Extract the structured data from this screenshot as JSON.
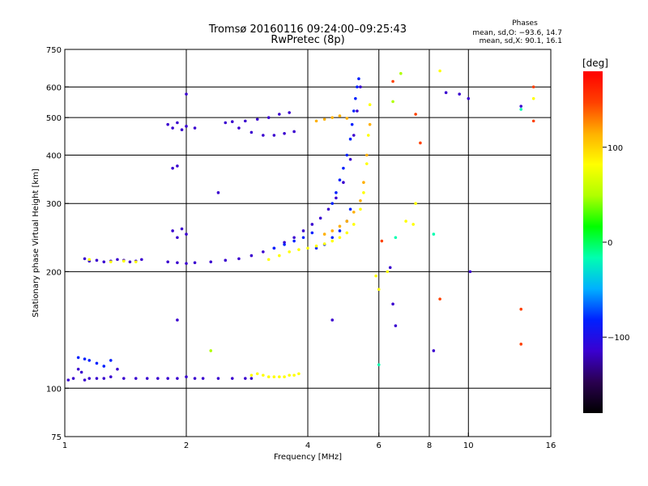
{
  "title": {
    "line1": "Tromsø 20160116 09:24:00–09:25:43",
    "line2": "RwPretec (8p)"
  },
  "phases_box": {
    "heading": "Phases",
    "line_o": "mean, sd,O: −93.6, 14.7",
    "line_x": "mean, sd,X:  90.1, 16.1"
  },
  "chart_data": {
    "type": "scatter",
    "xlabel": "Frequency [MHz]",
    "ylabel": "Stationary phase Virtual Height [km]",
    "xscale": "log",
    "yscale": "log",
    "xlim": [
      1,
      16
    ],
    "ylim": [
      75,
      750
    ],
    "x_ticks": [
      1,
      2,
      4,
      6,
      8,
      10,
      16
    ],
    "y_ticks": [
      75,
      100,
      200,
      300,
      400,
      500,
      600,
      750
    ],
    "x_grid": [
      2,
      4,
      6,
      8,
      10
    ],
    "y_grid": [
      100,
      200,
      300,
      400,
      500,
      600
    ],
    "grid": true,
    "colorbar": {
      "label": "[deg]",
      "range": [
        -180,
        180
      ],
      "ticks": [
        -100,
        0,
        100
      ],
      "tick_labels": [
        "−100",
        "0",
        "100"
      ],
      "colors": [
        "#000000",
        "#2a0050",
        "#3a00d0",
        "#0020ff",
        "#00b0ff",
        "#00ffb0",
        "#00ff00",
        "#b0ff00",
        "#ffff00",
        "#ffb000",
        "#ff4000",
        "#ff0000"
      ]
    },
    "series": [
      {
        "color_value": -100,
        "x": [
          1.02,
          1.05,
          1.08,
          1.1,
          1.12,
          1.15,
          1.2,
          1.25,
          1.3,
          1.35,
          1.4,
          1.5,
          1.6,
          1.7,
          1.8,
          1.9,
          2.0,
          2.1,
          2.2,
          2.4,
          2.6,
          2.8,
          2.9
        ],
        "y": [
          105,
          106,
          112,
          110,
          105,
          106,
          106,
          106,
          107,
          112,
          106,
          106,
          106,
          106,
          106,
          106,
          107,
          106,
          106,
          106,
          106,
          106,
          106
        ]
      },
      {
        "color_value": -90,
        "x": [
          1.08,
          1.12,
          1.15,
          1.2,
          1.25,
          1.3
        ],
        "y": [
          120,
          119,
          118,
          116,
          114,
          118
        ]
      },
      {
        "color_value": -100,
        "x": [
          1.12,
          1.15,
          1.2,
          1.25,
          1.3,
          1.35,
          1.4,
          1.45,
          1.5,
          1.55
        ],
        "y": [
          216,
          213,
          214,
          212,
          213,
          215,
          214,
          212,
          213,
          215
        ]
      },
      {
        "color_value": -100,
        "x": [
          1.8,
          1.9,
          2.0,
          2.1,
          2.3,
          2.5,
          2.7,
          2.9,
          3.1,
          3.3,
          3.5,
          3.7,
          3.9,
          4.1,
          4.3,
          4.5,
          4.7,
          4.9,
          5.1,
          5.2,
          5.3,
          5.4
        ],
        "y": [
          212,
          211,
          210,
          211,
          212,
          214,
          216,
          220,
          225,
          230,
          238,
          245,
          255,
          265,
          275,
          290,
          310,
          340,
          390,
          450,
          520,
          600
        ]
      },
      {
        "color_value": -95,
        "x": [
          4.6,
          4.7,
          4.8,
          4.9,
          5.0,
          5.1,
          5.15,
          5.2,
          5.25,
          5.3,
          5.35
        ],
        "y": [
          300,
          320,
          345,
          370,
          400,
          440,
          480,
          520,
          560,
          600,
          630
        ]
      },
      {
        "color_value": -100,
        "x": [
          2.5,
          2.7,
          2.9,
          3.1,
          3.3,
          3.5,
          3.7
        ],
        "y": [
          485,
          470,
          458,
          450,
          450,
          455,
          460
        ]
      },
      {
        "color_value": -100,
        "x": [
          1.8,
          1.85,
          1.9,
          1.95,
          2.0,
          2.1
        ],
        "y": [
          480,
          470,
          485,
          465,
          475,
          470
        ]
      },
      {
        "color_value": -100,
        "x": [
          2.6,
          2.8,
          3.0,
          3.2,
          3.4,
          3.6
        ],
        "y": [
          488,
          490,
          495,
          500,
          510,
          515
        ]
      },
      {
        "color_value": -100,
        "x": [
          1.85,
          1.9,
          1.95,
          2.0,
          1.9
        ],
        "y": [
          255,
          245,
          258,
          250,
          150
        ]
      },
      {
        "color_value": -100,
        "x": [
          1.85,
          1.9,
          2.0,
          2.4
        ],
        "y": [
          370,
          375,
          575,
          320
        ]
      },
      {
        "color_value": -90,
        "x": [
          3.3,
          3.5,
          3.7,
          3.9,
          4.1
        ],
        "y": [
          230,
          235,
          240,
          245,
          252
        ]
      },
      {
        "color_value": -95,
        "x": [
          4.2,
          4.4,
          4.6,
          4.8,
          5.0,
          5.1
        ],
        "y": [
          230,
          235,
          245,
          255,
          270,
          290
        ]
      },
      {
        "color_value": 95,
        "x": [
          2.9,
          3.0,
          3.1,
          3.2,
          3.3,
          3.4,
          3.5,
          3.6,
          3.7,
          3.8
        ],
        "y": [
          108,
          109,
          108,
          107,
          107,
          107,
          107,
          108,
          108,
          109
        ]
      },
      {
        "color_value": 95,
        "x": [
          3.2,
          3.4,
          3.6,
          3.8,
          4.0,
          4.2,
          4.4,
          4.6,
          4.8,
          5.0,
          5.2,
          5.4,
          5.5,
          5.6,
          5.65,
          5.7
        ],
        "y": [
          215,
          220,
          225,
          228,
          230,
          233,
          236,
          240,
          245,
          252,
          265,
          290,
          320,
          380,
          450,
          540
        ]
      },
      {
        "color_value": 100,
        "x": [
          4.4,
          4.6,
          4.8,
          5.0,
          5.2,
          5.4,
          5.5,
          5.6,
          5.7
        ],
        "y": [
          250,
          255,
          262,
          270,
          285,
          305,
          340,
          400,
          480
        ]
      },
      {
        "color_value": 100,
        "x": [
          4.2,
          4.4,
          4.6,
          4.8,
          5.0
        ],
        "y": [
          490,
          495,
          500,
          505,
          498
        ]
      },
      {
        "color_value": 95,
        "x": [
          1.15,
          1.3,
          1.4,
          1.5
        ],
        "y": [
          215,
          212,
          213,
          212
        ]
      },
      {
        "color_value": 95,
        "x": [
          5.9,
          6.0,
          6.3,
          7.0,
          7.3,
          7.4,
          8.5,
          14.5
        ],
        "y": [
          195,
          180,
          200,
          270,
          265,
          300,
          660,
          560
        ]
      },
      {
        "color_value": 160,
        "x": [
          6.1,
          6.5,
          7.4,
          7.6,
          8.5,
          13.5,
          13.5,
          14.5,
          14.5
        ],
        "y": [
          240,
          620,
          510,
          430,
          170,
          160,
          130,
          600,
          490
        ]
      },
      {
        "color_value": 60,
        "x": [
          2.3,
          6.5,
          6.8
        ],
        "y": [
          125,
          550,
          650
        ]
      },
      {
        "color_value": -30,
        "x": [
          6.0,
          6.6,
          8.2,
          13.5
        ],
        "y": [
          115,
          245,
          250,
          525
        ]
      },
      {
        "color_value": -100,
        "x": [
          4.6,
          6.5,
          6.6,
          8.2,
          8.8,
          9.5,
          10.0,
          10.1,
          13.5,
          6.4
        ],
        "y": [
          150,
          165,
          145,
          125,
          580,
          575,
          560,
          200,
          535,
          205
        ]
      }
    ]
  }
}
